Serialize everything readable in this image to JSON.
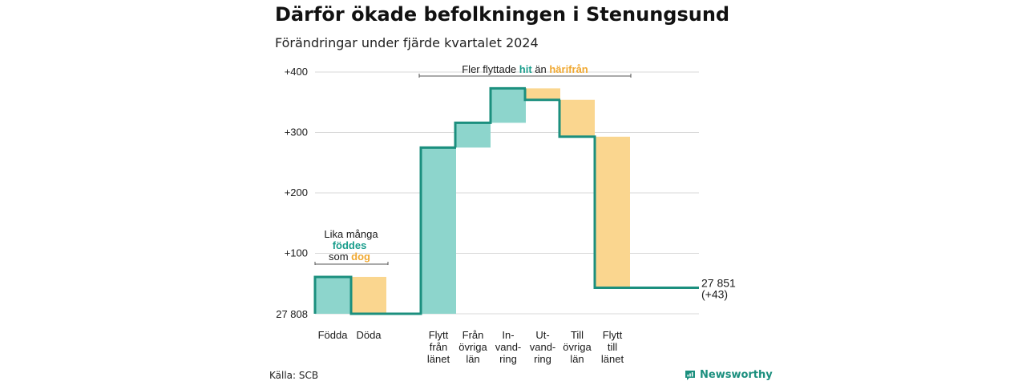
{
  "header": {
    "title": "Därför ökade befolkningen i Stenungsund",
    "subtitle": "Förändringar under fjärde kvartalet 2024"
  },
  "footer": {
    "source": "Källa: SCB",
    "brand": "Newsworthy"
  },
  "colors": {
    "in": "#8dd5cc",
    "out": "#fad68f",
    "line": "#1b8f7e",
    "in_text": "#1b9e8d",
    "out_text": "#f0a830",
    "grid": "#d9d9d9"
  },
  "chart_data": {
    "type": "waterfall",
    "base_value": 27808,
    "base_label": "27 808",
    "end_label": "27 851",
    "end_change_label": "(+43)",
    "ylim": [
      0,
      400
    ],
    "yticks": [
      {
        "value": 100,
        "label": "+100"
      },
      {
        "value": 200,
        "label": "+200"
      },
      {
        "value": 300,
        "label": "+300"
      },
      {
        "value": 400,
        "label": "+400"
      }
    ],
    "grid": true,
    "categories": [
      {
        "lines": [
          "Födda"
        ],
        "change": 61,
        "kind": "in"
      },
      {
        "lines": [
          "Döda"
        ],
        "change": -61,
        "kind": "out"
      },
      {
        "lines": [
          "Flytt",
          "från",
          "länet"
        ],
        "change": 275,
        "kind": "in"
      },
      {
        "lines": [
          "Från",
          "övriga",
          "län"
        ],
        "change": 41,
        "kind": "in"
      },
      {
        "lines": [
          "In-",
          "vand-",
          "ring"
        ],
        "change": 57,
        "kind": "in"
      },
      {
        "lines": [
          "Ut-",
          "vand-",
          "ring"
        ],
        "change": -19,
        "kind": "out"
      },
      {
        "lines": [
          "Till",
          "övriga",
          "län"
        ],
        "change": -61,
        "kind": "out"
      },
      {
        "lines": [
          "Flytt",
          "till",
          "länet"
        ],
        "change": -250,
        "kind": "out"
      }
    ],
    "annotations": {
      "left": {
        "line1": "Lika många",
        "in_word": "föddes",
        "prefix": "som ",
        "out_word": "dog"
      },
      "right": {
        "prefix": "Fler flyttade ",
        "in_word": "hit",
        "middle": " än ",
        "out_word": "härifrån"
      }
    }
  }
}
